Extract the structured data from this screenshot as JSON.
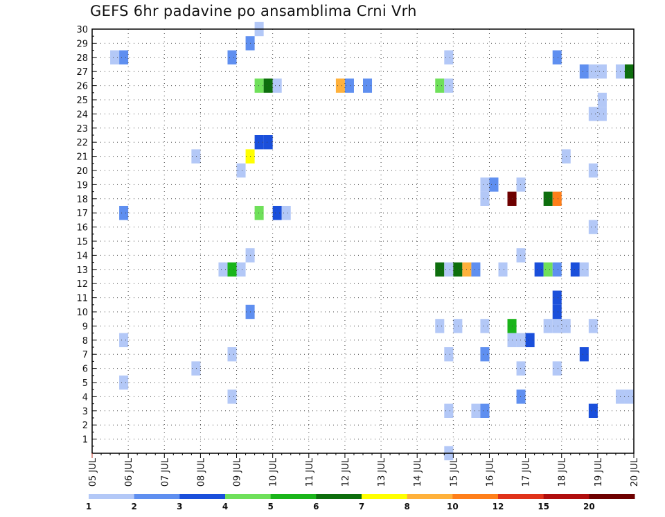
{
  "chart_data": {
    "type": "heatmap",
    "title": "GEFS 6hr padavine po ansamblima Crni Vrh",
    "xlabel": "",
    "ylabel": "",
    "x_tick_labels": [
      "05 JUL",
      "06 JUL",
      "07 JUL",
      "08 JUL",
      "09 JUL",
      "10 JUL",
      "11 JUL",
      "12 JUL",
      "13 JUL",
      "14 JUL",
      "15 JUL",
      "16 JUL",
      "17 JUL",
      "18 JUL",
      "19 JUL",
      "20 JUL"
    ],
    "y_tick_labels": [
      "1",
      "2",
      "3",
      "4",
      "5",
      "6",
      "7",
      "8",
      "9",
      "10",
      "11",
      "12",
      "13",
      "14",
      "15",
      "16",
      "17",
      "18",
      "19",
      "20",
      "21",
      "22",
      "23",
      "24",
      "25",
      "26",
      "27",
      "28",
      "29",
      "30"
    ],
    "xlim": [
      0,
      60
    ],
    "ylim": [
      0,
      30
    ],
    "grid": true,
    "x_unit": "6-hour steps from 05 JUL",
    "colorbar": {
      "labels": [
        "1",
        "2",
        "3",
        "4",
        "5",
        "6",
        "7",
        "8",
        "10",
        "12",
        "15",
        "20"
      ],
      "colors": [
        "#b3c8f7",
        "#5f8ff0",
        "#1a4fdb",
        "#6fe05a",
        "#1ab51a",
        "#0d6e0d",
        "#ffff00",
        "#ffb13b",
        "#ff7f1a",
        "#e0321a",
        "#b00d0d",
        "#6e0000"
      ]
    },
    "cells": [
      [
        39.5,
        0,
        1
      ],
      [
        39.5,
        3,
        1
      ],
      [
        42.5,
        3,
        1
      ],
      [
        43.5,
        3,
        2
      ],
      [
        55.5,
        3,
        3
      ],
      [
        15.5,
        4,
        1
      ],
      [
        47.5,
        4,
        2
      ],
      [
        58.5,
        4,
        1
      ],
      [
        59.5,
        4,
        1
      ],
      [
        3.5,
        5,
        1
      ],
      [
        11.5,
        6,
        1
      ],
      [
        47.5,
        6,
        1
      ],
      [
        51.5,
        6,
        1
      ],
      [
        15.5,
        7,
        1
      ],
      [
        39.5,
        7,
        1
      ],
      [
        43.5,
        7,
        2
      ],
      [
        54.5,
        7,
        3
      ],
      [
        3.5,
        8,
        1
      ],
      [
        46.5,
        8,
        1
      ],
      [
        47.5,
        8,
        1
      ],
      [
        48.5,
        8,
        3
      ],
      [
        38.5,
        9,
        1
      ],
      [
        40.5,
        9,
        1
      ],
      [
        43.5,
        9,
        1
      ],
      [
        46.5,
        9,
        5
      ],
      [
        50.5,
        9,
        1
      ],
      [
        51.5,
        9,
        1
      ],
      [
        52.5,
        9,
        1
      ],
      [
        55.5,
        9,
        1
      ],
      [
        17.5,
        10,
        2
      ],
      [
        51.5,
        10,
        3
      ],
      [
        51.5,
        11,
        3
      ],
      [
        14.5,
        13,
        1
      ],
      [
        15.5,
        13,
        5
      ],
      [
        16.5,
        13,
        1
      ],
      [
        38.5,
        13,
        6
      ],
      [
        39.5,
        13,
        1
      ],
      [
        40.5,
        13,
        6
      ],
      [
        41.5,
        13,
        8
      ],
      [
        42.5,
        13,
        2
      ],
      [
        45.5,
        13,
        1
      ],
      [
        49.5,
        13,
        3
      ],
      [
        50.5,
        13,
        4
      ],
      [
        51.5,
        13,
        2
      ],
      [
        53.5,
        13,
        3
      ],
      [
        54.5,
        13,
        1
      ],
      [
        17.5,
        14,
        1
      ],
      [
        47.5,
        14,
        1
      ],
      [
        55.5,
        16,
        1
      ],
      [
        3.5,
        17,
        2
      ],
      [
        18.5,
        17,
        4
      ],
      [
        20.5,
        17,
        3
      ],
      [
        21.5,
        17,
        1
      ],
      [
        43.5,
        18,
        1
      ],
      [
        46.5,
        18,
        12
      ],
      [
        50.5,
        18,
        6
      ],
      [
        51.5,
        18,
        9
      ],
      [
        43.5,
        19,
        1
      ],
      [
        44.5,
        19,
        2
      ],
      [
        47.5,
        19,
        1
      ],
      [
        16.5,
        20,
        1
      ],
      [
        55.5,
        20,
        1
      ],
      [
        52.5,
        21,
        1
      ],
      [
        11.5,
        21,
        1
      ],
      [
        17.5,
        21,
        7
      ],
      [
        18.5,
        22,
        3
      ],
      [
        19.5,
        22,
        3
      ],
      [
        55.5,
        24,
        1
      ],
      [
        56.5,
        24,
        1
      ],
      [
        56.5,
        25,
        1
      ],
      [
        18.5,
        26,
        4
      ],
      [
        19.5,
        26,
        6
      ],
      [
        20.5,
        26,
        1
      ],
      [
        27.5,
        26,
        8
      ],
      [
        28.5,
        26,
        2
      ],
      [
        30.5,
        26,
        2
      ],
      [
        38.5,
        26,
        4
      ],
      [
        39.5,
        26,
        1
      ],
      [
        54.5,
        27,
        2
      ],
      [
        55.5,
        27,
        1
      ],
      [
        56.5,
        27,
        1
      ],
      [
        58.5,
        27,
        1
      ],
      [
        59.5,
        27,
        6
      ],
      [
        2.5,
        28,
        1
      ],
      [
        3.5,
        28,
        2
      ],
      [
        15.5,
        28,
        2
      ],
      [
        39.5,
        28,
        1
      ],
      [
        51.5,
        28,
        2
      ],
      [
        17.5,
        29,
        2
      ],
      [
        18.5,
        30,
        1
      ]
    ]
  }
}
